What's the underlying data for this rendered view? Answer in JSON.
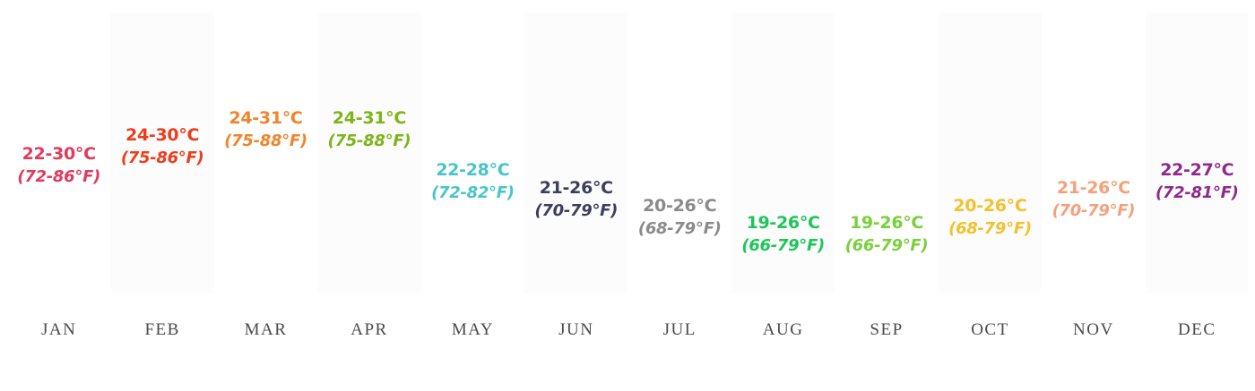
{
  "chart_data": {
    "type": "table",
    "title": "",
    "xlabel": "",
    "ylabel": "",
    "ylim_celsius_max": [
      24,
      31
    ],
    "categories": [
      "JAN",
      "FEB",
      "MAR",
      "APR",
      "MAY",
      "JUN",
      "JUL",
      "AUG",
      "SEP",
      "OCT",
      "NOV",
      "DEC"
    ],
    "months": [
      {
        "month": "JAN",
        "celsius": "22-30°C",
        "fahrenheit": "(72-86°F)",
        "max_c": 30,
        "color": "#e03a5e"
      },
      {
        "month": "FEB",
        "celsius": "24-30°C",
        "fahrenheit": "(75-86°F)",
        "max_c": 30,
        "color": "#ef3c1b"
      },
      {
        "month": "MAR",
        "celsius": "24-31°C",
        "fahrenheit": "(75-88°F)",
        "max_c": 31,
        "color": "#f1842a"
      },
      {
        "month": "APR",
        "celsius": "24-31°C",
        "fahrenheit": "(75-88°F)",
        "max_c": 31,
        "color": "#7cb518"
      },
      {
        "month": "MAY",
        "celsius": "22-28°C",
        "fahrenheit": "(72-82°F)",
        "max_c": 28,
        "color": "#48c5c8"
      },
      {
        "month": "JUN",
        "celsius": "21-26°C",
        "fahrenheit": "(70-79°F)",
        "max_c": 26,
        "color": "#3e3e5e"
      },
      {
        "month": "JUL",
        "celsius": "20-26°C",
        "fahrenheit": "(68-79°F)",
        "max_c": 26,
        "color": "#8a8a8a"
      },
      {
        "month": "AUG",
        "celsius": "19-26°C",
        "fahrenheit": "(66-79°F)",
        "max_c": 26,
        "color": "#1ec65a"
      },
      {
        "month": "SEP",
        "celsius": "19-26°C",
        "fahrenheit": "(66-79°F)",
        "max_c": 26,
        "color": "#78d13a"
      },
      {
        "month": "OCT",
        "celsius": "20-26°C",
        "fahrenheit": "(68-79°F)",
        "max_c": 26,
        "color": "#f2c12e"
      },
      {
        "month": "NOV",
        "celsius": "21-26°C",
        "fahrenheit": "(70-79°F)",
        "max_c": 26,
        "color": "#f6a07a"
      },
      {
        "month": "DEC",
        "celsius": "22-27°C",
        "fahrenheit": "(72-81°F)",
        "max_c": 27,
        "color": "#8e2a8c"
      }
    ]
  }
}
